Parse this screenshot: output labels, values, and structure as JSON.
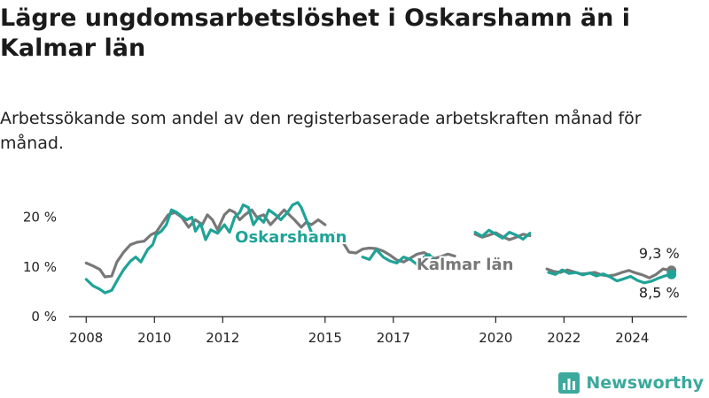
{
  "title": "Lägre ungdomsarbetslöshet i Oskarshamn än i Kalmar län",
  "subtitle": "Arbetssökande som andel av den registerbaserade arbetskraften månad för månad.",
  "brand": {
    "name": "Newsworthy",
    "logo_icon": "bar-chart-logo-icon"
  },
  "colors": {
    "oskarshamn": "#1fa397",
    "kalmar": "#787878",
    "axis": "#222222",
    "grid": "#dddddd"
  },
  "chart_data": {
    "type": "line",
    "xlim": [
      2007.5,
      2025.6
    ],
    "ylim": [
      0,
      22.8
    ],
    "x_ticks": [
      2008,
      2010,
      2012,
      2015,
      2017,
      2020,
      2022,
      2024
    ],
    "x_tick_labels": [
      "2008",
      "2010",
      "2012",
      "2015",
      "2017",
      "2020",
      "2022",
      "2024"
    ],
    "y_ticks": [
      0,
      10,
      20
    ],
    "y_tick_labels": [
      "0 %",
      "10 %",
      "20 %"
    ],
    "grid": false,
    "series": [
      {
        "name": "Oskarshamn",
        "color": "#1fa397",
        "end_label": "8,5 %",
        "segments": [
          [
            [
              2008.0,
              7.5
            ],
            [
              2008.2,
              6.2
            ],
            [
              2008.4,
              5.5
            ],
            [
              2008.55,
              4.8
            ],
            [
              2008.75,
              5.3
            ],
            [
              2008.9,
              7.2
            ],
            [
              2009.1,
              9.5
            ],
            [
              2009.3,
              11.2
            ],
            [
              2009.45,
              12.0
            ],
            [
              2009.6,
              11.0
            ],
            [
              2009.8,
              13.5
            ],
            [
              2009.95,
              14.5
            ],
            [
              2010.05,
              16.5
            ],
            [
              2010.2,
              17.2
            ],
            [
              2010.35,
              18.5
            ],
            [
              2010.5,
              21.5
            ],
            [
              2010.65,
              21.0
            ],
            [
              2010.8,
              20.2
            ],
            [
              2010.95,
              19.5
            ],
            [
              2011.1,
              20.0
            ],
            [
              2011.2,
              17.2
            ],
            [
              2011.35,
              18.8
            ],
            [
              2011.5,
              15.5
            ],
            [
              2011.65,
              17.5
            ],
            [
              2011.85,
              16.8
            ],
            [
              2012.05,
              18.5
            ],
            [
              2012.2,
              17.0
            ],
            [
              2012.35,
              20.0
            ],
            [
              2012.5,
              21.0
            ],
            [
              2012.6,
              22.5
            ],
            [
              2012.75,
              22.0
            ],
            [
              2012.9,
              18.5
            ],
            [
              2013.05,
              20.0
            ],
            [
              2013.2,
              19.0
            ],
            [
              2013.35,
              21.5
            ],
            [
              2013.55,
              20.5
            ],
            [
              2013.7,
              19.5
            ],
            [
              2013.9,
              21.0
            ],
            [
              2014.05,
              22.5
            ],
            [
              2014.2,
              23.0
            ],
            [
              2014.3,
              22.0
            ],
            [
              2014.45,
              19.5
            ],
            [
              2014.6,
              17.0
            ]
          ],
          [
            [
              2016.1,
              12.0
            ],
            [
              2016.3,
              11.5
            ],
            [
              2016.5,
              13.5
            ],
            [
              2016.7,
              12.0
            ],
            [
              2016.9,
              11.2
            ],
            [
              2017.1,
              10.8
            ],
            [
              2017.3,
              12.0
            ],
            [
              2017.5,
              11.5
            ],
            [
              2017.7,
              10.5
            ],
            [
              2017.9,
              12.0
            ],
            [
              2018.05,
              12.5
            ],
            [
              2018.2,
              11.0
            ]
          ],
          [
            [
              2019.4,
              17.0
            ],
            [
              2019.6,
              16.2
            ],
            [
              2019.8,
              17.4
            ],
            [
              2020.0,
              16.6
            ],
            [
              2020.2,
              15.8
            ],
            [
              2020.4,
              17.0
            ],
            [
              2020.6,
              16.4
            ],
            [
              2020.8,
              15.6
            ],
            [
              2021.0,
              16.8
            ]
          ],
          [
            [
              2021.55,
              8.9
            ],
            [
              2021.75,
              8.5
            ],
            [
              2021.95,
              9.4
            ],
            [
              2022.15,
              8.7
            ],
            [
              2022.35,
              8.9
            ],
            [
              2022.55,
              8.4
            ],
            [
              2022.75,
              8.8
            ],
            [
              2022.95,
              8.2
            ],
            [
              2023.15,
              8.6
            ],
            [
              2023.35,
              8.0
            ],
            [
              2023.55,
              7.2
            ],
            [
              2023.75,
              7.6
            ],
            [
              2023.95,
              8.1
            ],
            [
              2024.15,
              7.3
            ],
            [
              2024.35,
              6.8
            ],
            [
              2024.55,
              7.1
            ],
            [
              2024.75,
              7.7
            ],
            [
              2024.95,
              8.2
            ],
            [
              2025.15,
              8.5
            ]
          ]
        ],
        "end": [
          2025.15,
          8.5
        ]
      },
      {
        "name": "Kalmar län",
        "color": "#787878",
        "end_label": "9,3 %",
        "segments": [
          [
            [
              2008.0,
              10.8
            ],
            [
              2008.2,
              10.2
            ],
            [
              2008.4,
              9.5
            ],
            [
              2008.55,
              8.0
            ],
            [
              2008.75,
              8.2
            ],
            [
              2008.9,
              11.0
            ],
            [
              2009.1,
              13.0
            ],
            [
              2009.3,
              14.5
            ],
            [
              2009.5,
              15.0
            ],
            [
              2009.7,
              15.2
            ],
            [
              2009.9,
              16.5
            ],
            [
              2010.05,
              17.0
            ],
            [
              2010.2,
              18.5
            ],
            [
              2010.4,
              20.5
            ],
            [
              2010.6,
              21.0
            ],
            [
              2010.8,
              20.0
            ],
            [
              2011.0,
              18.0
            ],
            [
              2011.2,
              19.5
            ],
            [
              2011.4,
              18.5
            ],
            [
              2011.55,
              20.5
            ],
            [
              2011.7,
              19.5
            ],
            [
              2011.85,
              17.5
            ],
            [
              2012.05,
              20.5
            ],
            [
              2012.2,
              21.5
            ],
            [
              2012.35,
              21.0
            ],
            [
              2012.5,
              19.5
            ],
            [
              2012.65,
              20.5
            ],
            [
              2012.85,
              21.5
            ],
            [
              2013.0,
              20.0
            ],
            [
              2013.2,
              20.5
            ],
            [
              2013.4,
              18.5
            ],
            [
              2013.6,
              20.0
            ],
            [
              2013.8,
              21.5
            ],
            [
              2013.95,
              20.5
            ],
            [
              2014.1,
              19.5
            ],
            [
              2014.3,
              18.0
            ],
            [
              2014.45,
              19.0
            ],
            [
              2014.6,
              18.5
            ],
            [
              2014.8,
              19.5
            ],
            [
              2015.0,
              18.5
            ]
          ],
          [
            [
              2015.1,
              16.5
            ],
            [
              2015.3,
              16.8
            ],
            [
              2015.5,
              15.2
            ],
            [
              2015.7,
              13.0
            ],
            [
              2015.9,
              12.8
            ],
            [
              2016.1,
              13.6
            ],
            [
              2016.3,
              13.8
            ],
            [
              2016.5,
              13.7
            ],
            [
              2016.7,
              13.2
            ],
            [
              2016.9,
              12.4
            ],
            [
              2017.1,
              11.4
            ],
            [
              2017.3,
              11.0
            ],
            [
              2017.5,
              11.8
            ],
            [
              2017.7,
              12.6
            ],
            [
              2017.9,
              12.9
            ],
            [
              2018.05,
              12.3
            ],
            [
              2018.2,
              11.7
            ],
            [
              2018.4,
              12.1
            ],
            [
              2018.6,
              12.6
            ],
            [
              2018.8,
              12.2
            ]
          ],
          [
            [
              2019.4,
              16.6
            ],
            [
              2019.6,
              16.0
            ],
            [
              2019.8,
              16.4
            ],
            [
              2020.0,
              16.9
            ],
            [
              2020.2,
              16.1
            ],
            [
              2020.4,
              15.5
            ],
            [
              2020.6,
              16.0
            ],
            [
              2020.8,
              16.6
            ],
            [
              2021.0,
              16.3
            ]
          ],
          [
            [
              2021.5,
              9.6
            ],
            [
              2021.7,
              9.1
            ],
            [
              2021.9,
              8.9
            ],
            [
              2022.1,
              9.4
            ],
            [
              2022.3,
              9.0
            ],
            [
              2022.5,
              8.6
            ],
            [
              2022.7,
              8.7
            ],
            [
              2022.9,
              8.9
            ],
            [
              2023.1,
              8.4
            ],
            [
              2023.3,
              8.2
            ],
            [
              2023.5,
              8.4
            ],
            [
              2023.7,
              8.9
            ],
            [
              2023.9,
              9.3
            ],
            [
              2024.1,
              8.8
            ],
            [
              2024.3,
              8.4
            ],
            [
              2024.5,
              7.8
            ],
            [
              2024.7,
              8.5
            ],
            [
              2024.9,
              9.6
            ],
            [
              2025.05,
              9.4
            ],
            [
              2025.15,
              9.3
            ]
          ]
        ],
        "end": [
          2025.15,
          9.3
        ]
      }
    ],
    "annotations": [
      {
        "text": "Oskarshamn",
        "series": "Oskarshamn",
        "at": [
          2014.0,
          15.0
        ]
      },
      {
        "text": "Kalmar län",
        "series": "Kalmar län",
        "at": [
          2019.1,
          9.4
        ]
      }
    ]
  }
}
